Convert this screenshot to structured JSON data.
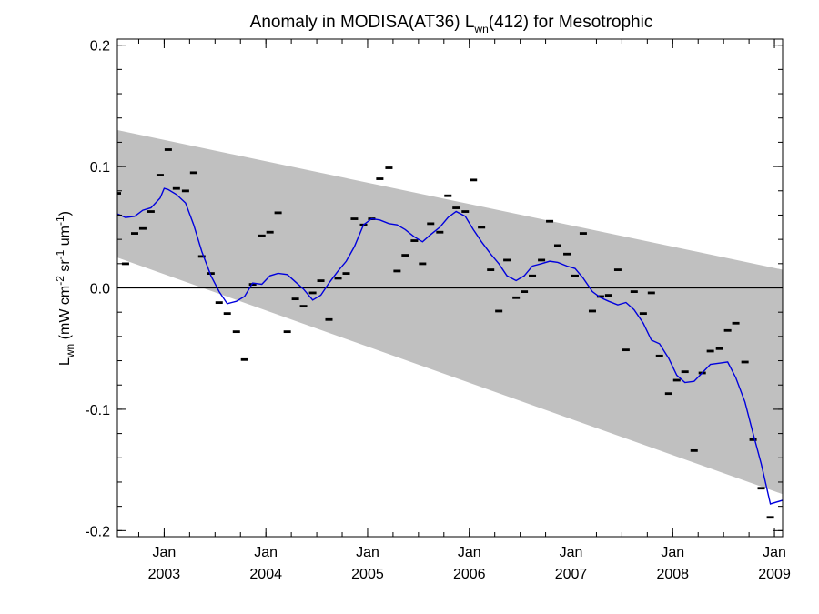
{
  "chart_data": {
    "type": "line",
    "title": {
      "prefix": "Anomaly in MODISA(AT36) L",
      "subscript": "wn",
      "suffix": "(412) for Mesotrophic"
    },
    "ylabel": {
      "prefix": "L",
      "sub": "wn",
      "mid1": " (mW cm",
      "sup1": "-2",
      "mid2": " sr",
      "sup2": "-1",
      "mid3": " um",
      "sup3": "-1",
      "suffix": ")"
    },
    "xlim": [
      2002.54,
      2009.08
    ],
    "ylim": [
      -0.205,
      0.205
    ],
    "x_ticks": [
      {
        "value": 2003.0,
        "month": "Jan",
        "year": "2003"
      },
      {
        "value": 2004.0,
        "month": "Jan",
        "year": "2004"
      },
      {
        "value": 2005.0,
        "month": "Jan",
        "year": "2005"
      },
      {
        "value": 2006.0,
        "month": "Jan",
        "year": "2006"
      },
      {
        "value": 2007.0,
        "month": "Jan",
        "year": "2007"
      },
      {
        "value": 2008.0,
        "month": "Jan",
        "year": "2008"
      },
      {
        "value": 2009.0,
        "month": "Jan",
        "year": "2009"
      }
    ],
    "y_ticks": [
      {
        "value": 0.2,
        "label": "0.2"
      },
      {
        "value": 0.1,
        "label": "0.1"
      },
      {
        "value": 0.0,
        "label": "0.0"
      },
      {
        "value": -0.1,
        "label": "-0.1"
      },
      {
        "value": -0.2,
        "label": "-0.2"
      }
    ],
    "zero_line": 0.0,
    "band": {
      "color": "#c0c0c0",
      "upper": [
        [
          2002.54,
          0.13
        ],
        [
          2009.08,
          0.015
        ]
      ],
      "lower": [
        [
          2002.54,
          0.025
        ],
        [
          2009.08,
          -0.17
        ]
      ]
    },
    "series": [
      {
        "kind": "monthly-markers",
        "color": "#000000",
        "points": [
          [
            2002.54,
            0.078
          ],
          [
            2002.62,
            0.02
          ],
          [
            2002.71,
            0.045
          ],
          [
            2002.79,
            0.049
          ],
          [
            2002.87,
            0.063
          ],
          [
            2002.96,
            0.093
          ],
          [
            2003.04,
            0.114
          ],
          [
            2003.12,
            0.082
          ],
          [
            2003.21,
            0.08
          ],
          [
            2003.29,
            0.095
          ],
          [
            2003.37,
            0.026
          ],
          [
            2003.46,
            0.012
          ],
          [
            2003.54,
            -0.012
          ],
          [
            2003.62,
            -0.021
          ],
          [
            2003.71,
            -0.036
          ],
          [
            2003.79,
            -0.059
          ],
          [
            2003.87,
            0.003
          ],
          [
            2003.96,
            0.043
          ],
          [
            2004.04,
            0.046
          ],
          [
            2004.12,
            0.062
          ],
          [
            2004.21,
            -0.036
          ],
          [
            2004.29,
            -0.009
          ],
          [
            2004.37,
            -0.015
          ],
          [
            2004.46,
            -0.004
          ],
          [
            2004.54,
            0.006
          ],
          [
            2004.62,
            -0.026
          ],
          [
            2004.71,
            0.008
          ],
          [
            2004.79,
            0.012
          ],
          [
            2004.87,
            0.057
          ],
          [
            2004.96,
            0.052
          ],
          [
            2005.04,
            0.057
          ],
          [
            2005.12,
            0.09
          ],
          [
            2005.21,
            0.099
          ],
          [
            2005.29,
            0.014
          ],
          [
            2005.37,
            0.027
          ],
          [
            2005.46,
            0.039
          ],
          [
            2005.54,
            0.02
          ],
          [
            2005.62,
            0.053
          ],
          [
            2005.71,
            0.046
          ],
          [
            2005.79,
            0.076
          ],
          [
            2005.87,
            0.066
          ],
          [
            2005.96,
            0.063
          ],
          [
            2006.04,
            0.089
          ],
          [
            2006.12,
            0.05
          ],
          [
            2006.21,
            0.015
          ],
          [
            2006.29,
            -0.019
          ],
          [
            2006.37,
            0.023
          ],
          [
            2006.46,
            -0.008
          ],
          [
            2006.54,
            -0.003
          ],
          [
            2006.62,
            0.01
          ],
          [
            2006.71,
            0.023
          ],
          [
            2006.79,
            0.055
          ],
          [
            2006.87,
            0.035
          ],
          [
            2006.96,
            0.028
          ],
          [
            2007.04,
            0.01
          ],
          [
            2007.12,
            0.045
          ],
          [
            2007.21,
            -0.019
          ],
          [
            2007.29,
            -0.007
          ],
          [
            2007.37,
            -0.006
          ],
          [
            2007.46,
            0.015
          ],
          [
            2007.54,
            -0.051
          ],
          [
            2007.62,
            -0.003
          ],
          [
            2007.71,
            -0.021
          ],
          [
            2007.79,
            -0.004
          ],
          [
            2007.87,
            -0.056
          ],
          [
            2007.96,
            -0.087
          ],
          [
            2008.04,
            -0.076
          ],
          [
            2008.12,
            -0.069
          ],
          [
            2008.21,
            -0.134
          ],
          [
            2008.29,
            -0.07
          ],
          [
            2008.37,
            -0.052
          ],
          [
            2008.46,
            -0.05
          ],
          [
            2008.54,
            -0.035
          ],
          [
            2008.62,
            -0.029
          ],
          [
            2008.71,
            -0.061
          ],
          [
            2008.79,
            -0.125
          ],
          [
            2008.87,
            -0.165
          ],
          [
            2008.96,
            -0.189
          ]
        ]
      },
      {
        "kind": "smoothed-line",
        "color": "#0000dd",
        "points": [
          [
            2002.54,
            0.061
          ],
          [
            2002.62,
            0.058
          ],
          [
            2002.71,
            0.059
          ],
          [
            2002.79,
            0.064
          ],
          [
            2002.87,
            0.066
          ],
          [
            2002.96,
            0.074
          ],
          [
            2003.0,
            0.082
          ],
          [
            2003.04,
            0.081
          ],
          [
            2003.12,
            0.077
          ],
          [
            2003.21,
            0.07
          ],
          [
            2003.29,
            0.052
          ],
          [
            2003.37,
            0.03
          ],
          [
            2003.46,
            0.01
          ],
          [
            2003.54,
            -0.003
          ],
          [
            2003.62,
            -0.013
          ],
          [
            2003.71,
            -0.011
          ],
          [
            2003.79,
            -0.007
          ],
          [
            2003.87,
            0.004
          ],
          [
            2003.96,
            0.003
          ],
          [
            2004.04,
            0.01
          ],
          [
            2004.12,
            0.012
          ],
          [
            2004.21,
            0.011
          ],
          [
            2004.29,
            0.005
          ],
          [
            2004.37,
            -0.001
          ],
          [
            2004.46,
            -0.01
          ],
          [
            2004.54,
            -0.006
          ],
          [
            2004.62,
            0.004
          ],
          [
            2004.71,
            0.014
          ],
          [
            2004.79,
            0.022
          ],
          [
            2004.87,
            0.034
          ],
          [
            2004.96,
            0.052
          ],
          [
            2005.04,
            0.057
          ],
          [
            2005.12,
            0.056
          ],
          [
            2005.21,
            0.053
          ],
          [
            2005.29,
            0.052
          ],
          [
            2005.37,
            0.048
          ],
          [
            2005.46,
            0.042
          ],
          [
            2005.54,
            0.038
          ],
          [
            2005.62,
            0.044
          ],
          [
            2005.71,
            0.05
          ],
          [
            2005.79,
            0.058
          ],
          [
            2005.87,
            0.063
          ],
          [
            2005.96,
            0.059
          ],
          [
            2006.04,
            0.048
          ],
          [
            2006.12,
            0.038
          ],
          [
            2006.21,
            0.028
          ],
          [
            2006.29,
            0.02
          ],
          [
            2006.37,
            0.01
          ],
          [
            2006.46,
            0.006
          ],
          [
            2006.54,
            0.01
          ],
          [
            2006.62,
            0.018
          ],
          [
            2006.71,
            0.02
          ],
          [
            2006.79,
            0.022
          ],
          [
            2006.87,
            0.021
          ],
          [
            2006.96,
            0.018
          ],
          [
            2007.04,
            0.016
          ],
          [
            2007.12,
            0.008
          ],
          [
            2007.21,
            -0.003
          ],
          [
            2007.29,
            -0.008
          ],
          [
            2007.37,
            -0.011
          ],
          [
            2007.46,
            -0.014
          ],
          [
            2007.54,
            -0.012
          ],
          [
            2007.62,
            -0.018
          ],
          [
            2007.71,
            -0.029
          ],
          [
            2007.79,
            -0.043
          ],
          [
            2007.87,
            -0.046
          ],
          [
            2007.96,
            -0.058
          ],
          [
            2008.04,
            -0.072
          ],
          [
            2008.12,
            -0.078
          ],
          [
            2008.21,
            -0.077
          ],
          [
            2008.29,
            -0.07
          ],
          [
            2008.37,
            -0.063
          ],
          [
            2008.46,
            -0.062
          ],
          [
            2008.54,
            -0.061
          ],
          [
            2008.62,
            -0.074
          ],
          [
            2008.71,
            -0.094
          ],
          [
            2008.79,
            -0.12
          ],
          [
            2008.87,
            -0.145
          ],
          [
            2008.96,
            -0.178
          ],
          [
            2009.08,
            -0.175
          ]
        ]
      }
    ]
  }
}
